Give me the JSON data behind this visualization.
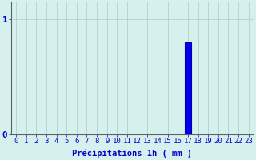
{
  "categories": [
    0,
    1,
    2,
    3,
    4,
    5,
    6,
    7,
    8,
    9,
    10,
    11,
    12,
    13,
    14,
    15,
    16,
    17,
    18,
    19,
    20,
    21,
    22,
    23
  ],
  "values": [
    0,
    0,
    0,
    0,
    0,
    0,
    0,
    0,
    0,
    0,
    0,
    0,
    0,
    0,
    0,
    0,
    0,
    0.8,
    0,
    0,
    0,
    0,
    0,
    0
  ],
  "bar_color": "#0000ee",
  "bar_edge_color": "#0000aa",
  "background_color": "#d6f0ee",
  "grid_color": "#b0c8c8",
  "axis_color": "#606060",
  "tick_color": "#0000cc",
  "xlabel": "Précipitations 1h ( mm )",
  "xlabel_color": "#0000cc",
  "xlabel_fontsize": 7.5,
  "ylabel_0": "0",
  "ylabel_1": "1",
  "ytick_label_color": "#0000cc",
  "ylim": [
    0,
    1.15
  ],
  "xlim": [
    -0.5,
    23.5
  ],
  "yticks": [
    0,
    1
  ],
  "tick_fontsize": 6.5,
  "ytick_fontsize": 8
}
